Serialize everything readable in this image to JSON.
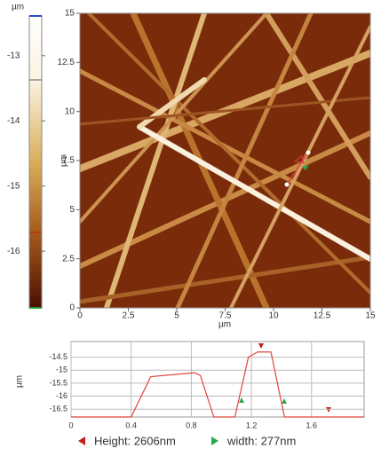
{
  "chart_data": [
    {
      "type": "heatmap",
      "colorbar_unit": "µm",
      "clim": [
        -16.87,
        -12.39
      ],
      "cticks": [
        -13,
        -14,
        -15,
        -16
      ],
      "xlabel": "µm",
      "ylabel": "µm",
      "xlim": [
        0,
        15
      ],
      "ylim": [
        0,
        15
      ],
      "xticks": [
        0,
        2.5,
        5,
        7.5,
        10,
        12.5,
        15
      ],
      "yticks": [
        0,
        2.5,
        5,
        7.5,
        10,
        12.5,
        15
      ]
    },
    {
      "type": "line",
      "ylabel": "µm",
      "xlim": [
        0,
        1.95
      ],
      "ylim": [
        -16.8,
        -13.9
      ],
      "xticks": [
        0,
        0.4,
        0.8,
        1.2,
        1.6
      ],
      "yticks": [
        -14.5,
        -15,
        -15.5,
        -16,
        -16.5
      ],
      "grid": true,
      "series": [
        {
          "color": "#e0453a",
          "x": [
            0,
            0.4,
            0.53,
            0.82,
            0.86,
            0.95,
            1.09,
            1.18,
            1.24,
            1.33,
            1.42,
            1.95
          ],
          "values": [
            -16.8,
            -16.8,
            -15.25,
            -15.1,
            -15.2,
            -16.8,
            -16.8,
            -14.5,
            -14.3,
            -14.3,
            -16.8,
            -16.8
          ]
        }
      ],
      "legend": [
        "Height: 2606nm",
        "width: 277nm"
      ]
    }
  ]
}
